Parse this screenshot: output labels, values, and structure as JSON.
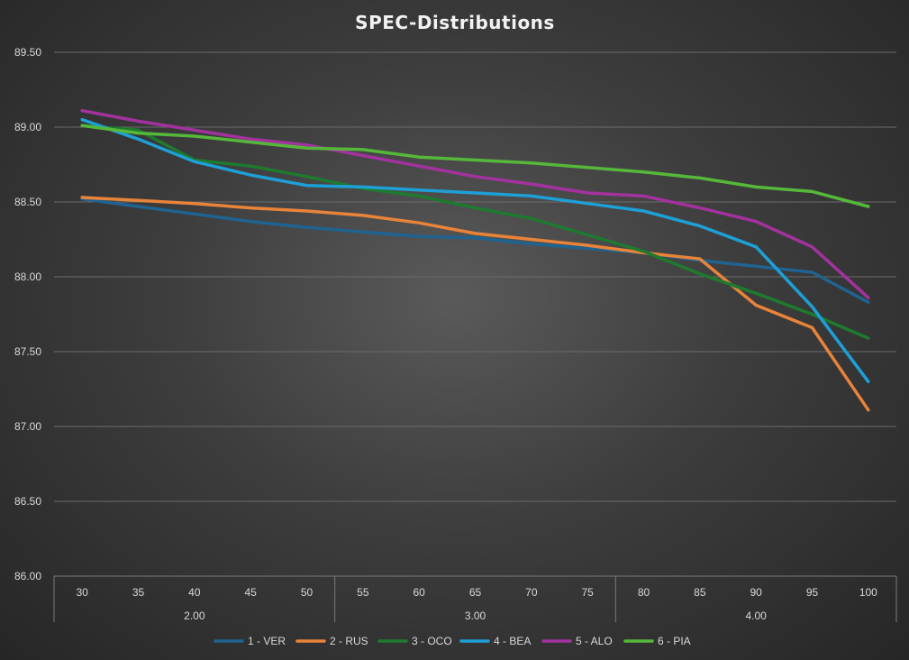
{
  "chart_data": {
    "type": "line",
    "title": "SPEC-Distributions",
    "xlabel": "",
    "ylabel": "",
    "ylim": [
      86.0,
      89.5
    ],
    "y_ticks": [
      "86.00",
      "86.50",
      "87.00",
      "87.50",
      "88.00",
      "88.50",
      "89.00",
      "89.50"
    ],
    "categories": [
      "30",
      "35",
      "40",
      "45",
      "50",
      "55",
      "60",
      "65",
      "70",
      "75",
      "80",
      "85",
      "90",
      "95",
      "100"
    ],
    "groups": [
      {
        "label": "2.00",
        "span": 5
      },
      {
        "label": "3.00",
        "span": 5
      },
      {
        "label": "4.00",
        "span": 5
      }
    ],
    "grid": true,
    "legend_position": "bottom",
    "series": [
      {
        "name": "1 - VER",
        "color": "#1f6391",
        "values": [
          88.52,
          88.47,
          88.42,
          88.37,
          88.33,
          88.3,
          88.27,
          88.26,
          88.22,
          88.19,
          88.16,
          88.11,
          88.07,
          88.03,
          87.83
        ]
      },
      {
        "name": "2 - RUS",
        "color": "#e8833a",
        "values": [
          88.53,
          88.51,
          88.49,
          88.46,
          88.44,
          88.41,
          88.36,
          88.29,
          88.25,
          88.21,
          88.16,
          88.12,
          87.81,
          87.66,
          87.11
        ]
      },
      {
        "name": "3 - OCO",
        "color": "#1e7a2e",
        "values": [
          89.01,
          88.98,
          88.78,
          88.74,
          88.67,
          88.59,
          88.54,
          88.46,
          88.39,
          88.28,
          88.17,
          88.02,
          87.89,
          87.75,
          87.59
        ]
      },
      {
        "name": "4 - BEA",
        "color": "#1e9fd6",
        "values": [
          89.05,
          88.92,
          88.77,
          88.68,
          88.61,
          88.6,
          88.58,
          88.56,
          88.54,
          88.49,
          88.44,
          88.34,
          88.2,
          87.8,
          87.3
        ]
      },
      {
        "name": "5 - ALO",
        "color": "#a3329f",
        "values": [
          89.11,
          89.04,
          88.98,
          88.92,
          88.88,
          88.81,
          88.74,
          88.67,
          88.62,
          88.56,
          88.54,
          88.46,
          88.37,
          88.2,
          87.86
        ]
      },
      {
        "name": "6 - PIA",
        "color": "#55b83a",
        "values": [
          89.01,
          88.96,
          88.94,
          88.9,
          88.86,
          88.85,
          88.8,
          88.78,
          88.76,
          88.73,
          88.7,
          88.66,
          88.6,
          88.57,
          88.47
        ]
      }
    ]
  }
}
